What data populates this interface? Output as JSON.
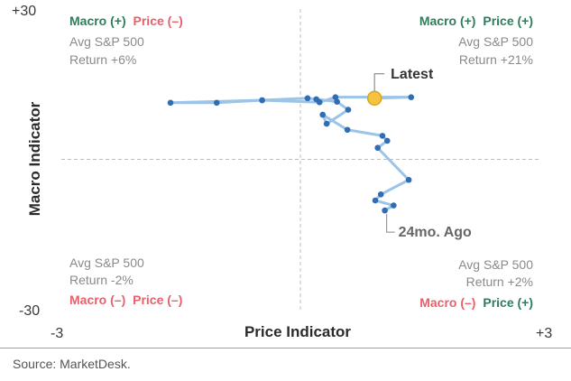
{
  "colors": {
    "positive": "#2e7d5b",
    "negative": "#e8606a",
    "path_line": "#9cc3e8",
    "point": "#2f6db5",
    "latest": "#f5c242",
    "latest_stroke": "#d9a520",
    "grid": "#bdbdbd",
    "annotation_latest": "#333333",
    "annotation_ago": "#666666"
  },
  "chart_data": {
    "type": "scatter",
    "title": "",
    "xlabel": "Price Indicator",
    "ylabel": "Macro Indicator",
    "xlim": [
      -3,
      3
    ],
    "ylim": [
      -30,
      30
    ],
    "x_tick_labels": [
      "-3",
      "+3"
    ],
    "y_tick_labels": [
      "+30",
      "-30"
    ],
    "quadrants": [
      {
        "id": "top-left",
        "macro": "Macro (+)",
        "price": "Price (–)",
        "stat_1": "Avg S&P 500",
        "stat_2": "Return +6%"
      },
      {
        "id": "top-right",
        "macro": "Macro (+)",
        "price": "Price (+)",
        "stat_1": "Avg S&P 500",
        "stat_2": "Return +21%"
      },
      {
        "id": "bottom-left",
        "macro": "Macro (–)",
        "price": "Price (–)",
        "stat_1": "Avg S&P 500",
        "stat_2": "Return -2%"
      },
      {
        "id": "bottom-right",
        "macro": "Macro (–)",
        "price": "Price (+)",
        "stat_1": "Avg S&P 500",
        "stat_2": "Return +2%"
      }
    ],
    "path": [
      {
        "x": 1.06,
        "y": -10.2
      },
      {
        "x": 1.17,
        "y": -9.2
      },
      {
        "x": 0.94,
        "y": -8.2
      },
      {
        "x": 1.01,
        "y": -7.0
      },
      {
        "x": 1.36,
        "y": -4.1
      },
      {
        "x": 0.97,
        "y": 2.3
      },
      {
        "x": 1.09,
        "y": 3.7
      },
      {
        "x": 1.03,
        "y": 4.7
      },
      {
        "x": 0.59,
        "y": 5.9
      },
      {
        "x": 0.28,
        "y": 8.9
      },
      {
        "x": 0.33,
        "y": 7.1
      },
      {
        "x": 0.6,
        "y": 9.9
      },
      {
        "x": 0.46,
        "y": 11.5
      },
      {
        "x": 0.2,
        "y": 12.0
      },
      {
        "x": 0.09,
        "y": 12.2
      },
      {
        "x": -0.48,
        "y": 11.8
      },
      {
        "x": -1.05,
        "y": 11.3
      },
      {
        "x": -1.63,
        "y": 11.3
      },
      {
        "x": -0.48,
        "y": 11.8
      },
      {
        "x": 0.24,
        "y": 11.4
      },
      {
        "x": 0.44,
        "y": 12.4
      },
      {
        "x": 1.39,
        "y": 12.4
      },
      {
        "x": 0.93,
        "y": 12.2
      }
    ],
    "latest_index": 22,
    "annotations": [
      {
        "text": "Latest",
        "point": "latest"
      },
      {
        "text": "24mo. Ago",
        "point": "first"
      }
    ]
  },
  "source": "Source: MarketDesk."
}
